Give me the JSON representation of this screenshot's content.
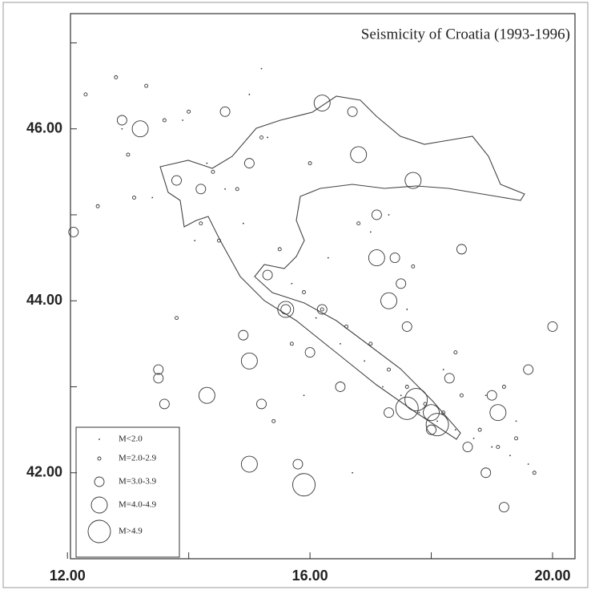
{
  "chart_data": {
    "type": "scatter",
    "title": "Seismicity of Croatia (1993-1996)",
    "xlim": [
      12.05,
      20.37
    ],
    "ylim": [
      41.0,
      47.34
    ],
    "xticks": [
      {
        "value": 12,
        "label": "12.00"
      },
      14,
      {
        "value": 16,
        "label": "16.00"
      },
      18,
      {
        "value": 20,
        "label": "20.00"
      }
    ],
    "yticks": [
      {
        "value": 42,
        "label": "42.00"
      },
      43,
      {
        "value": 44,
        "label": "44.00"
      },
      45,
      {
        "value": 46,
        "label": "46.00"
      },
      47
    ],
    "legend": "bottom-left",
    "color": "#333333",
    "series": [
      {
        "name": "M<2.0",
        "x": [
          13.9,
          14.3,
          14.6,
          15.0,
          15.3,
          15.7,
          16.1,
          16.5,
          16.9,
          17.2,
          17.5,
          17.8,
          18.1,
          18.4,
          18.7,
          19.0,
          19.3,
          19.6,
          15.2,
          14.9,
          16.3,
          17.0,
          17.6,
          18.2,
          13.4,
          12.9,
          16.7,
          15.9,
          18.9,
          19.4,
          14.1,
          17.3
        ],
        "y": [
          46.1,
          45.6,
          45.3,
          46.4,
          45.9,
          44.2,
          43.8,
          43.5,
          43.3,
          43.0,
          42.9,
          42.7,
          42.6,
          42.5,
          42.4,
          42.3,
          42.2,
          42.1,
          46.7,
          44.9,
          44.5,
          44.8,
          43.9,
          43.2,
          45.2,
          46.0,
          42.0,
          42.9,
          42.9,
          42.6,
          44.7,
          45.0
        ]
      },
      {
        "name": "M=2.0-2.9",
        "x": [
          12.3,
          12.5,
          13.0,
          13.3,
          13.6,
          14.0,
          14.4,
          14.8,
          15.2,
          15.5,
          15.9,
          16.2,
          16.6,
          17.0,
          17.3,
          17.6,
          17.9,
          18.2,
          18.5,
          18.8,
          19.1,
          19.4,
          19.7,
          13.1,
          12.8,
          14.5,
          15.7,
          16.8,
          17.7,
          18.4,
          19.2,
          14.2,
          16.0,
          13.8,
          15.4
        ],
        "y": [
          46.4,
          45.1,
          45.7,
          46.5,
          46.1,
          46.2,
          45.5,
          45.3,
          45.9,
          44.6,
          44.1,
          43.9,
          43.7,
          43.5,
          43.2,
          43.0,
          42.8,
          42.7,
          42.9,
          42.5,
          42.3,
          42.4,
          42.0,
          45.2,
          46.6,
          44.7,
          43.5,
          44.9,
          44.4,
          43.4,
          43.0,
          44.9,
          45.6,
          43.8,
          42.6
        ]
      },
      {
        "name": "M=3.0-3.9",
        "x": [
          12.1,
          12.9,
          13.5,
          13.6,
          14.2,
          14.6,
          15.0,
          15.3,
          15.6,
          16.0,
          16.5,
          16.7,
          17.1,
          17.4,
          17.6,
          18.0,
          18.3,
          18.6,
          18.9,
          19.2,
          19.6,
          20.0,
          13.8,
          14.9,
          15.2,
          15.8,
          16.2,
          17.5,
          18.5,
          19.0,
          13.5,
          17.3
        ],
        "y": [
          44.8,
          46.1,
          43.2,
          42.8,
          45.3,
          46.2,
          45.6,
          44.3,
          43.9,
          43.4,
          43.0,
          46.2,
          45.0,
          44.5,
          43.7,
          42.5,
          43.1,
          42.3,
          42.0,
          41.6,
          43.2,
          43.7,
          45.4,
          43.6,
          42.8,
          42.1,
          43.9,
          44.2,
          44.6,
          42.9,
          43.1,
          42.7
        ]
      },
      {
        "name": "M=4.0-4.9",
        "x": [
          13.2,
          14.3,
          15.0,
          15.0,
          15.6,
          16.8,
          17.1,
          17.7,
          18.0,
          17.3,
          19.1,
          16.2
        ],
        "y": [
          46.0,
          42.9,
          42.1,
          43.3,
          43.9,
          45.7,
          44.5,
          45.4,
          42.7,
          44.0,
          42.7,
          46.3
        ]
      },
      {
        "name": "M>4.9",
        "x": [
          17.75,
          15.9,
          18.1,
          17.6
        ],
        "y": [
          42.85,
          41.86,
          42.56,
          42.75
        ]
      }
    ]
  }
}
